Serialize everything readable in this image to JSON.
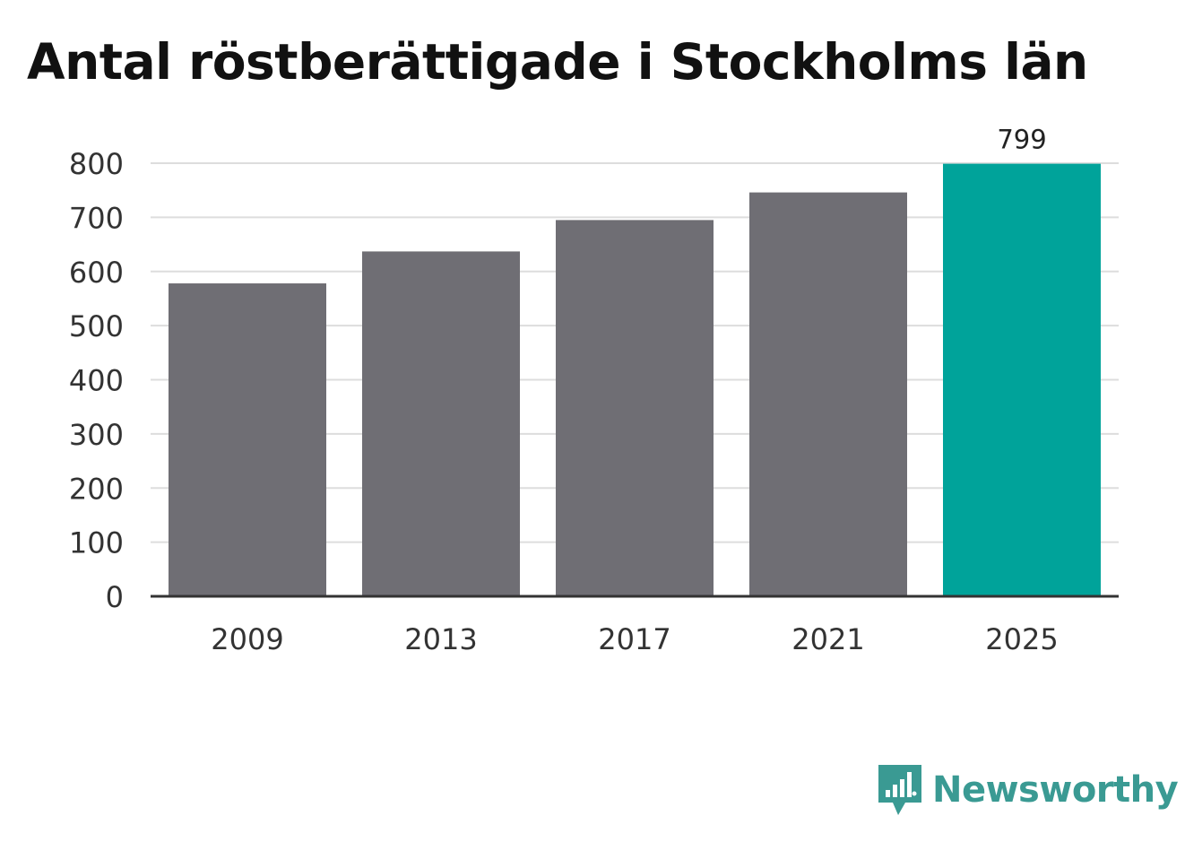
{
  "chart_data": {
    "type": "bar",
    "title": "Antal röstberättigade i Stockholms län",
    "xlabel": "",
    "ylabel": "",
    "categories": [
      "2009",
      "2013",
      "2017",
      "2021",
      "2025"
    ],
    "values": [
      578,
      637,
      695,
      746,
      799
    ],
    "value_labels": [
      "",
      "",
      "",
      "",
      "799"
    ],
    "ylim": [
      0,
      800
    ],
    "yticks": [
      0,
      100,
      200,
      300,
      400,
      500,
      600,
      700,
      800
    ],
    "grid": true,
    "legend": "none",
    "colors": {
      "default_bar": "#6f6e74",
      "highlight_bar": "#00a39a",
      "gridline": "#dddddd",
      "axis": "#333333"
    },
    "highlight_index": 4
  },
  "brand": {
    "name": "Newsworthy",
    "icon": "newsworthy-logo-icon",
    "color": "#3a9a93"
  }
}
